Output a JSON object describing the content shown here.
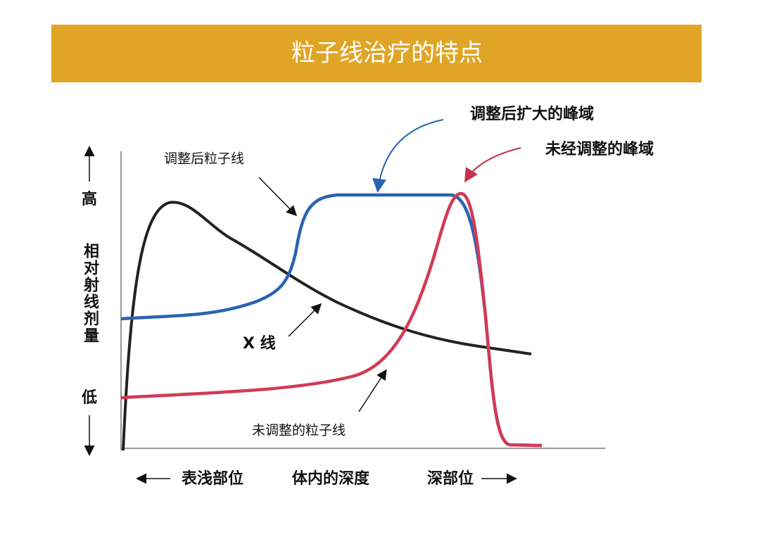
{
  "title": "粒子线治疗的特点",
  "annotations": {
    "adjusted_peak": "调整后扩大的峰域",
    "unadjusted_peak": "未经调整的峰域",
    "adjusted_particle": "调整后粒子线",
    "xray": "X 线",
    "unadjusted_particle": "未调整的粒子线"
  },
  "y_axis": {
    "high": "高",
    "label": "相对射线剂量",
    "low": "低"
  },
  "x_axis": {
    "shallow": "表浅部位",
    "label": "体内的深度",
    "deep": "深部位"
  }
}
